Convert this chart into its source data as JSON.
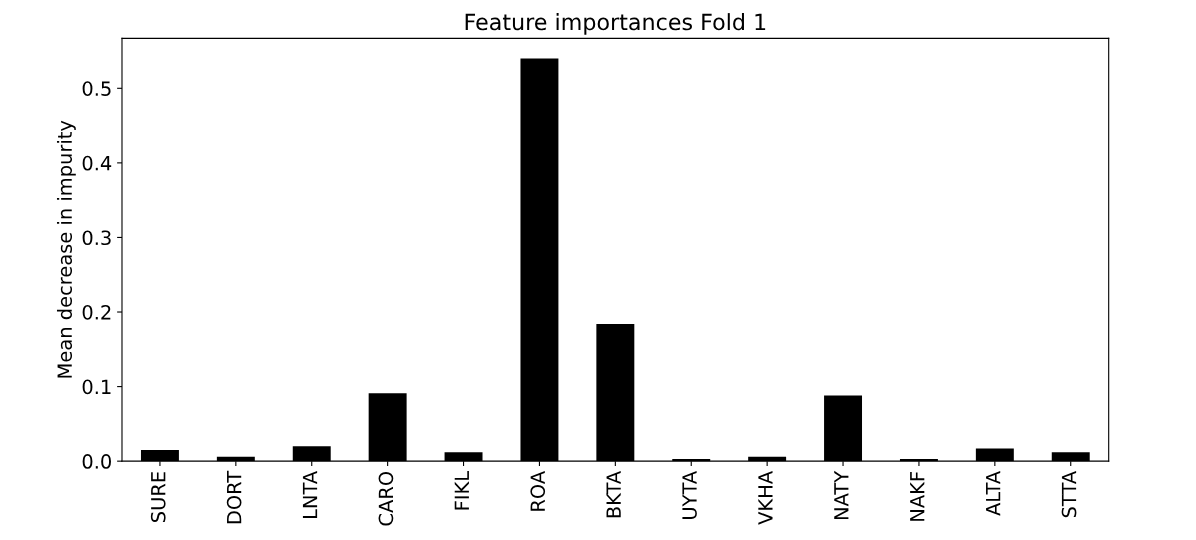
{
  "chart_data": {
    "type": "bar",
    "title": "Feature importances Fold 1",
    "ylabel": "Mean decrease in impurity",
    "categories": [
      "SURE",
      "DORT",
      "LNTA",
      "CARO",
      "FIKL",
      "ROA",
      "BKTA",
      "UYTA",
      "VKHA",
      "NATY",
      "NAKF",
      "ALTA",
      "STTA"
    ],
    "values": [
      0.015,
      0.006,
      0.02,
      0.091,
      0.012,
      0.54,
      0.184,
      0.003,
      0.006,
      0.088,
      0.003,
      0.017,
      0.012
    ],
    "color": "#000000",
    "ylim": [
      0,
      0.567
    ],
    "yticks": [
      {
        "value": 0,
        "label": "0.0"
      },
      0.1,
      0.2,
      0.3,
      0.4,
      0.5
    ],
    "grid": false,
    "legend": false
  }
}
